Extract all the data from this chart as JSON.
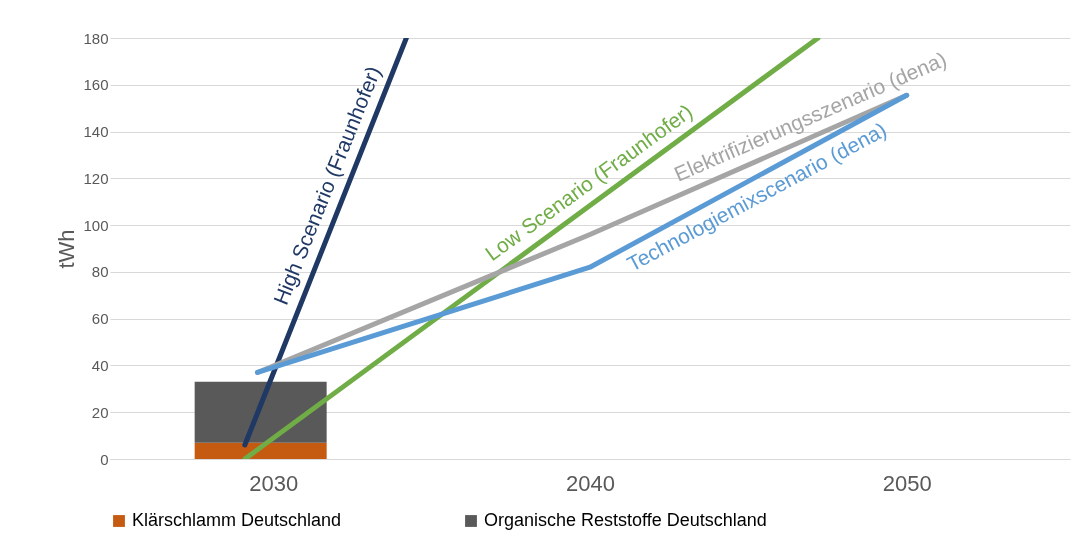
{
  "chart_data": {
    "type": "bar",
    "ylabel": "tWh",
    "xlim": [
      2025,
      2055
    ],
    "xticks": [
      2030,
      2040,
      2050
    ],
    "ylim": [
      0,
      180
    ],
    "yticks": [
      0,
      20,
      40,
      60,
      80,
      100,
      120,
      140,
      160,
      180
    ],
    "grid": "y",
    "legend": "bottom",
    "stacked": true,
    "x": [
      2029.6
    ],
    "series": [
      {
        "name": "Klärschlamm Deutschland",
        "color": "#c55a11",
        "values": [
          7
        ]
      },
      {
        "name": "Organische Reststoffe Deutschland",
        "color": "#595959",
        "values": [
          26
        ]
      },
      {
        "name": "High Scenario (Fraunhofer)",
        "type": "line",
        "color": "#1f3864",
        "x": [
          2029.1,
          2034.2
        ],
        "values": [
          6,
          180
        ]
      },
      {
        "name": "Low Scenario (Fraunhofer)",
        "type": "line",
        "color": "#70ad47",
        "x": [
          2029.1,
          2047.2
        ],
        "values": [
          0,
          180
        ]
      },
      {
        "name": "Elektrifizierungsszenario (dena)",
        "type": "line",
        "color": "#a5a5a5",
        "x": [
          2029.5,
          2040,
          2050
        ],
        "values": [
          37,
          96,
          155.5
        ]
      },
      {
        "name": "Technologiemixscenario (dena)",
        "type": "line",
        "color": "#5b9bd5",
        "x": [
          2029.5,
          2040,
          2050
        ],
        "values": [
          37,
          82,
          155.5
        ]
      }
    ]
  }
}
